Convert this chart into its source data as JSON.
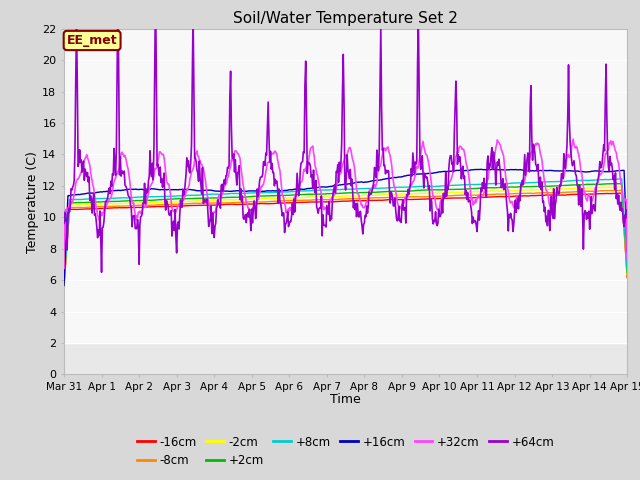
{
  "title": "Soil/Water Temperature Set 2",
  "ylabel": "Temperature (C)",
  "xlabel": "Time",
  "ylim": [
    0,
    22
  ],
  "yticks": [
    0,
    2,
    4,
    6,
    8,
    10,
    12,
    14,
    16,
    18,
    20,
    22
  ],
  "xtick_labels": [
    "Mar 31",
    "Apr 1",
    "Apr 2",
    "Apr 3",
    "Apr 4",
    "Apr 5",
    "Apr 6",
    "Apr 7",
    "Apr 8",
    "Apr 9",
    "Apr 10",
    "Apr 11",
    "Apr 12",
    "Apr 13",
    "Apr 14",
    "Apr 15"
  ],
  "series": [
    {
      "label": "-16cm",
      "color": "#ff0000"
    },
    {
      "label": "-8cm",
      "color": "#ff8800"
    },
    {
      "label": "-2cm",
      "color": "#ffff00"
    },
    {
      "label": "+2cm",
      "color": "#00bb00"
    },
    {
      "label": "+8cm",
      "color": "#00cccc"
    },
    {
      "label": "+16cm",
      "color": "#0000bb"
    },
    {
      "label": "+32cm",
      "color": "#ff44ff"
    },
    {
      "label": "+64cm",
      "color": "#9900cc"
    }
  ],
  "bg_color": "#d8d8d8",
  "plot_bg_light": "#f0f0f0",
  "plot_bg_dark": "#e0e0e0",
  "grid_color": "#ffffff",
  "ee_met_label": "EE_met",
  "ee_met_bg": "#ffff99",
  "ee_met_border": "#880000",
  "seed": 42
}
